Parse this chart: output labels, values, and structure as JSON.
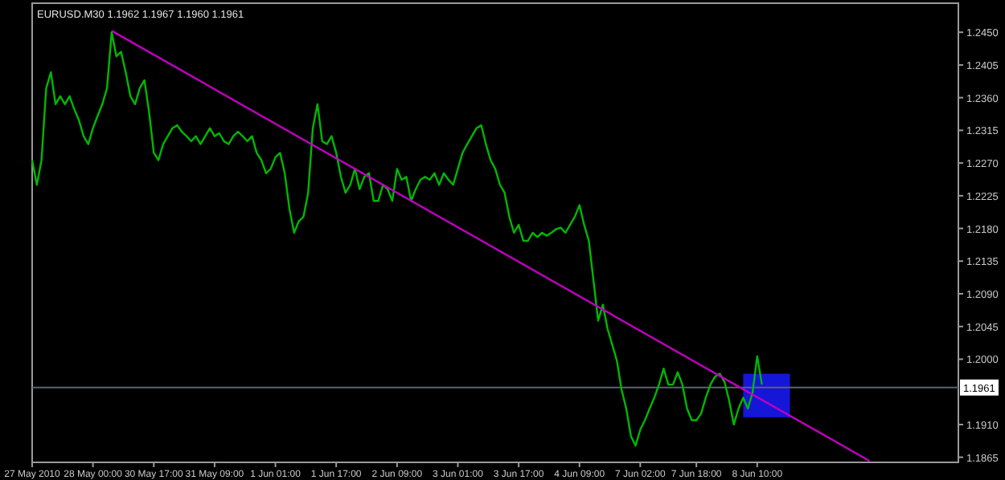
{
  "chart_data": {
    "type": "line",
    "title": "EURUSD.M30  1.1962 1.1967 1.1960 1.1961",
    "categories": [
      "27 May 2010",
      null,
      null,
      null,
      null,
      null,
      null,
      null,
      null,
      null,
      null,
      null,
      null,
      "28 May 00:00",
      null,
      null,
      null,
      null,
      null,
      null,
      null,
      null,
      null,
      null,
      null,
      null,
      "30 May 17:00",
      null,
      null,
      null,
      null,
      null,
      null,
      null,
      null,
      null,
      null,
      null,
      null,
      "31 May 09:00",
      null,
      null,
      null,
      null,
      null,
      null,
      null,
      null,
      null,
      null,
      null,
      null,
      "1 Jun 01:00",
      null,
      null,
      null,
      null,
      null,
      null,
      null,
      null,
      null,
      null,
      null,
      null,
      "1 Jun 17:00",
      null,
      null,
      null,
      null,
      null,
      null,
      null,
      null,
      null,
      null,
      null,
      null,
      "2 Jun 09:00",
      null,
      null,
      null,
      null,
      null,
      null,
      null,
      null,
      null,
      null,
      null,
      null,
      "3 Jun 01:00",
      null,
      null,
      null,
      null,
      null,
      null,
      null,
      null,
      null,
      null,
      null,
      null,
      "3 Jun 17:00",
      null,
      null,
      null,
      null,
      null,
      null,
      null,
      null,
      null,
      null,
      null,
      null,
      "4 Jun 09:00",
      null,
      null,
      null,
      null,
      null,
      null,
      null,
      null,
      null,
      null,
      null,
      null,
      "7 Jun 02:00",
      null,
      null,
      null,
      null,
      null,
      null,
      null,
      null,
      null,
      null,
      null,
      "7 Jun 18:00",
      null,
      null,
      null,
      null,
      null,
      null,
      null,
      null,
      null,
      null,
      null,
      null,
      "8 Jun 10:00",
      null,
      null,
      null,
      null,
      null,
      null,
      null,
      null,
      null,
      null,
      null,
      null,
      null,
      null,
      null,
      null,
      null,
      null,
      null,
      null,
      null,
      null,
      null,
      null,
      null,
      null,
      null,
      null,
      null,
      null,
      null,
      null,
      null,
      null,
      null,
      null,
      null,
      null,
      null,
      null,
      null,
      null,
      null
    ],
    "ylim": [
      1.1858,
      1.249
    ],
    "yticks": [
      {
        "value": 1.245,
        "label": "1.2450"
      },
      1.2405,
      {
        "value": 1.236,
        "label": "1.2360"
      },
      1.2315,
      {
        "value": 1.227,
        "label": "1.2270"
      },
      1.2225,
      {
        "value": 1.218,
        "label": "1.2180"
      },
      1.2135,
      {
        "value": 1.209,
        "label": "1.2090"
      },
      1.2045,
      {
        "value": 1.2,
        "label": "1.2000"
      },
      {
        "value": 1.191,
        "label": "1.1910"
      },
      1.1865
    ],
    "series": [
      {
        "color": "#00b800",
        "values": [
          1.2274,
          1.224,
          1.2274,
          1.2373,
          1.2395,
          1.2351,
          1.2362,
          1.2351,
          1.2362,
          1.2344,
          1.2329,
          1.2307,
          1.2296,
          1.2318,
          1.2335,
          1.2351,
          1.2373,
          1.245,
          1.2417,
          1.2423,
          1.2395,
          1.2362,
          1.2351,
          1.2373,
          1.2384,
          1.234,
          1.2284,
          1.2274,
          1.2296,
          1.2307,
          1.2318,
          1.2322,
          1.2313,
          1.2307,
          1.23,
          1.2307,
          1.2296,
          1.2307,
          1.2318,
          1.2307,
          1.2311,
          1.23,
          1.2296,
          1.2307,
          1.2313,
          1.2307,
          1.23,
          1.2307,
          1.2284,
          1.2274,
          1.2256,
          1.2262,
          1.2278,
          1.2284,
          1.2256,
          1.2207,
          1.2174,
          1.219,
          1.2196,
          1.2229,
          1.2318,
          1.2351,
          1.23,
          1.2296,
          1.2307,
          1.2284,
          1.2251,
          1.2229,
          1.224,
          1.2262,
          1.2234,
          1.2251,
          1.2256,
          1.2218,
          1.2218,
          1.224,
          1.2234,
          1.2218,
          1.2262,
          1.2247,
          1.2251,
          1.2218,
          1.2234,
          1.2247,
          1.2251,
          1.2247,
          1.2256,
          1.224,
          1.2256,
          1.2247,
          1.224,
          1.2262,
          1.2284,
          1.2296,
          1.2307,
          1.2318,
          1.2322,
          1.2296,
          1.2274,
          1.2262,
          1.224,
          1.2229,
          1.2196,
          1.2174,
          1.2185,
          1.2163,
          1.2163,
          1.2174,
          1.2168,
          1.2174,
          1.217,
          1.2174,
          1.2179,
          1.2181,
          1.2174,
          1.2185,
          1.2196,
          1.2212,
          1.2185,
          1.2163,
          1.2108,
          1.2053,
          1.2075,
          1.2042,
          1.202,
          1.1998,
          1.1958,
          1.1932,
          1.1894,
          1.1881,
          1.1903,
          1.1916,
          1.1932,
          1.1947,
          1.1965,
          1.1987,
          1.1965,
          1.1965,
          1.1982,
          1.1965,
          1.1932,
          1.1916,
          1.1916,
          1.1925,
          1.1947,
          1.1965,
          1.1976,
          1.198,
          1.1969,
          1.1943,
          1.191,
          1.1932,
          1.1947,
          1.1932,
          1.1954,
          1.2004,
          1.1965,
          null,
          null,
          null,
          null,
          null,
          null,
          null,
          null,
          null,
          null,
          null,
          null,
          null,
          null,
          null,
          null,
          null,
          null,
          null,
          null,
          null,
          null,
          null,
          null,
          null,
          null,
          null,
          null,
          null,
          null,
          null,
          null,
          null,
          null,
          null,
          null,
          null,
          null,
          null,
          null,
          null,
          null
        ]
      },
      {
        "type": "line",
        "color": "#c000c0",
        "values": [
          null,
          null,
          null,
          null,
          null,
          null,
          null,
          null,
          null,
          null,
          null,
          null,
          null,
          null,
          null,
          null,
          null,
          1.2452,
          null,
          null,
          null,
          null,
          null,
          null,
          null,
          null,
          null,
          null,
          null,
          null,
          null,
          null,
          null,
          null,
          null,
          null,
          null,
          null,
          null,
          null,
          null,
          null,
          null,
          null,
          null,
          null,
          null,
          null,
          null,
          null,
          null,
          null,
          null,
          null,
          null,
          null,
          null,
          null,
          null,
          null,
          null,
          null,
          null,
          null,
          null,
          null,
          null,
          null,
          null,
          null,
          null,
          null,
          null,
          null,
          null,
          null,
          null,
          null,
          null,
          null,
          null,
          null,
          null,
          null,
          null,
          null,
          null,
          null,
          null,
          null,
          null,
          null,
          null,
          null,
          null,
          null,
          null,
          null,
          null,
          null,
          null,
          null,
          null,
          null,
          null,
          null,
          null,
          null,
          null,
          null,
          null,
          null,
          null,
          null,
          null,
          null,
          null,
          null,
          null,
          null,
          null,
          null,
          null,
          null,
          null,
          null,
          null,
          null,
          null,
          null,
          null,
          null,
          null,
          null,
          null,
          null,
          null,
          null,
          null,
          null,
          null,
          null,
          null,
          null,
          null,
          null,
          null,
          null,
          null,
          null,
          null,
          null,
          null,
          null,
          null,
          null,
          null,
          null,
          null,
          null,
          null,
          null,
          null,
          null,
          null,
          null,
          null,
          null,
          null,
          null,
          null,
          null,
          null,
          null,
          null,
          null,
          null,
          null,
          null,
          1.186,
          null,
          null,
          null,
          null,
          null,
          null,
          null,
          null,
          null,
          null,
          null,
          null,
          null,
          null,
          null,
          null,
          null,
          null,
          null
        ]
      }
    ],
    "ref_lines": [
      {
        "axis": "y",
        "value": 1.1961,
        "label": "1.1961",
        "color": "#5a6270"
      }
    ]
  }
}
